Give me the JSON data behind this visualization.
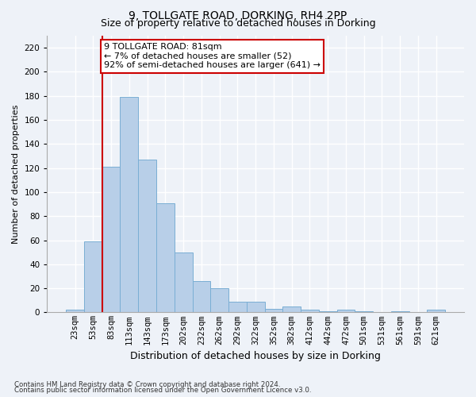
{
  "title1": "9, TOLLGATE ROAD, DORKING, RH4 2PP",
  "title2": "Size of property relative to detached houses in Dorking",
  "xlabel": "Distribution of detached houses by size in Dorking",
  "ylabel": "Number of detached properties",
  "bins": [
    "23sqm",
    "53sqm",
    "83sqm",
    "113sqm",
    "143sqm",
    "173sqm",
    "202sqm",
    "232sqm",
    "262sqm",
    "292sqm",
    "322sqm",
    "352sqm",
    "382sqm",
    "412sqm",
    "442sqm",
    "472sqm",
    "501sqm",
    "531sqm",
    "561sqm",
    "591sqm",
    "621sqm"
  ],
  "values": [
    2,
    59,
    121,
    179,
    127,
    91,
    50,
    26,
    20,
    9,
    9,
    3,
    5,
    2,
    1,
    2,
    1,
    0,
    1,
    0,
    2
  ],
  "bar_color": "#b8cfe8",
  "bar_edge_color": "#7aaed4",
  "highlight_bin_index": 2,
  "highlight_color": "#cc0000",
  "annotation_text": "9 TOLLGATE ROAD: 81sqm\n← 7% of detached houses are smaller (52)\n92% of semi-detached houses are larger (641) →",
  "annotation_box_color": "#ffffff",
  "annotation_box_edge": "#cc0000",
  "ylim": [
    0,
    230
  ],
  "yticks": [
    0,
    20,
    40,
    60,
    80,
    100,
    120,
    140,
    160,
    180,
    200,
    220
  ],
  "footer1": "Contains HM Land Registry data © Crown copyright and database right 2024.",
  "footer2": "Contains public sector information licensed under the Open Government Licence v3.0.",
  "bg_color": "#eef2f8",
  "grid_color": "#ffffff",
  "title1_fontsize": 10,
  "title2_fontsize": 9,
  "ylabel_fontsize": 8,
  "xlabel_fontsize": 9,
  "tick_fontsize": 7.5,
  "annotation_fontsize": 8
}
